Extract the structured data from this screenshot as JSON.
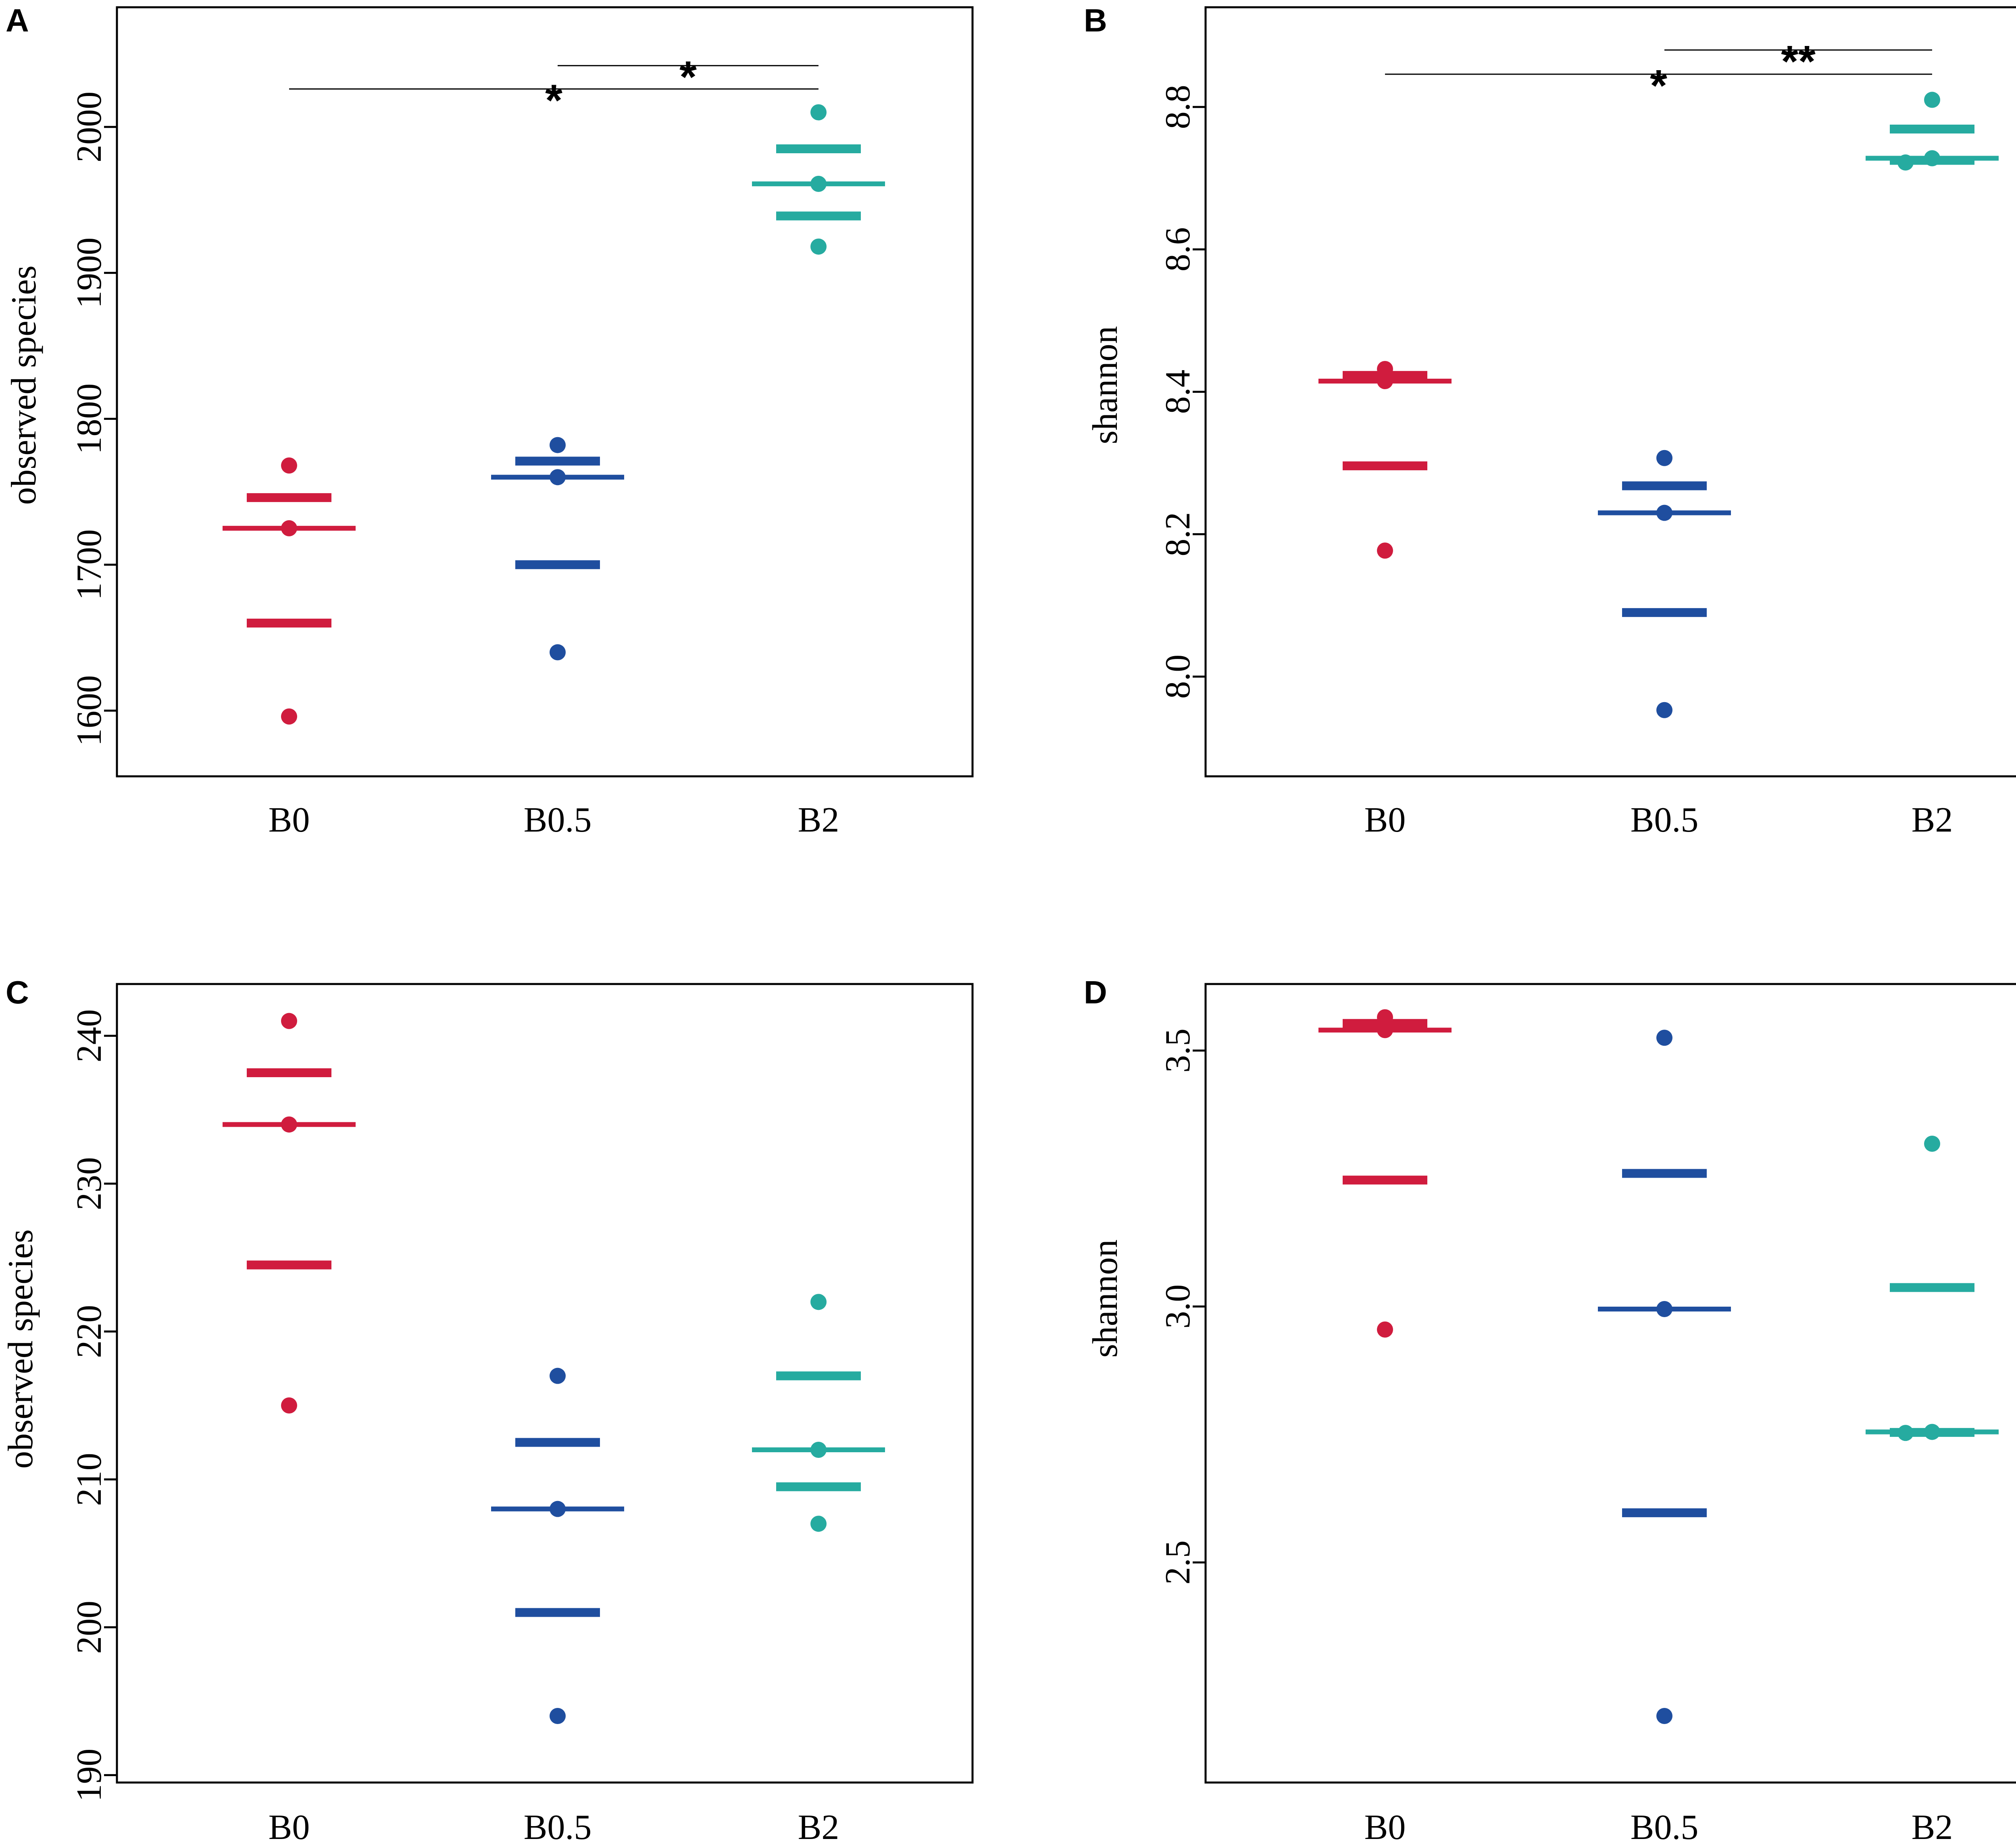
{
  "figure": {
    "colors": {
      "B0": "#D01C3E",
      "B0.5": "#1F4E9F",
      "B2": "#26ABA0"
    }
  },
  "chart_data": [
    {
      "panel": "A",
      "type": "scatter",
      "ylabel": "observed species",
      "xlabel": "",
      "categories": [
        "B0",
        "B0.5",
        "B2"
      ],
      "yticks": [
        1600,
        1700,
        1800,
        1900,
        2000
      ],
      "ylim": [
        1555,
        2082
      ],
      "series": [
        {
          "name": "B0",
          "points": [
            1596,
            1725,
            1768
          ],
          "median": 1725,
          "q1": 1660,
          "q3": 1746
        },
        {
          "name": "B0.5",
          "points": [
            1640,
            1760,
            1782
          ],
          "median": 1760,
          "q1": 1700,
          "q3": 1771
        },
        {
          "name": "B2",
          "points": [
            1918,
            1961,
            2010
          ],
          "median": 1961,
          "q1": 1939,
          "q3": 1985
        }
      ],
      "significance": [
        {
          "from": "B0",
          "to": "B2",
          "y": 2026,
          "label": "*"
        },
        {
          "from": "B0.5",
          "to": "B2",
          "y": 2042,
          "label": "*"
        }
      ]
    },
    {
      "panel": "B",
      "type": "scatter",
      "ylabel": "shannon",
      "xlabel": "",
      "categories": [
        "B0",
        "B0.5",
        "B2"
      ],
      "yticks": [
        "8.0",
        "8.2",
        "8.4",
        "8.6",
        "8.8"
      ],
      "ylim": [
        7.86,
        8.94
      ],
      "series": [
        {
          "name": "B0",
          "points": [
            8.177,
            8.415,
            8.432
          ],
          "median": 8.415,
          "q1": 8.296,
          "q3": 8.423
        },
        {
          "name": "B0.5",
          "points": [
            7.953,
            8.23,
            8.307
          ],
          "median": 8.23,
          "q1": 8.09,
          "q3": 8.268
        },
        {
          "name": "B2",
          "points": [
            8.722,
            8.728,
            8.81
          ],
          "median": 8.728,
          "q1": 8.725,
          "q3": 8.769
        }
      ],
      "significance": [
        {
          "from": "B0",
          "to": "B2",
          "y": 8.846,
          "label": "*"
        },
        {
          "from": "B0.5",
          "to": "B2",
          "y": 8.88,
          "label": "**"
        }
      ]
    },
    {
      "panel": "C",
      "type": "scatter",
      "ylabel": "observed species",
      "xlabel": "",
      "categories": [
        "B0",
        "B0.5",
        "B2"
      ],
      "yticks": [
        190,
        200,
        210,
        220,
        230,
        240
      ],
      "ylim": [
        189.5,
        243.5
      ],
      "series": [
        {
          "name": "B0",
          "points": [
            215,
            234,
            241
          ],
          "median": 234,
          "q1": 224.5,
          "q3": 237.5
        },
        {
          "name": "B0.5",
          "points": [
            194,
            208,
            217
          ],
          "median": 208,
          "q1": 201,
          "q3": 212.5
        },
        {
          "name": "B2",
          "points": [
            207,
            212,
            222
          ],
          "median": 212,
          "q1": 209.5,
          "q3": 217
        }
      ],
      "significance": []
    },
    {
      "panel": "D",
      "type": "scatter",
      "ylabel": "shannon",
      "xlabel": "",
      "categories": [
        "B0",
        "B0.5",
        "B2"
      ],
      "yticks": [
        "2.5",
        "3.0",
        "3.5"
      ],
      "ylim": [
        2.07,
        3.63
      ],
      "series": [
        {
          "name": "B0",
          "points": [
            2.955,
            3.54,
            3.565
          ],
          "median": 3.54,
          "q1": 3.247,
          "q3": 3.553
        },
        {
          "name": "B0.5",
          "points": [
            2.2,
            2.995,
            3.525
          ],
          "median": 2.995,
          "q1": 2.597,
          "q3": 3.26
        },
        {
          "name": "B2",
          "points": [
            2.753,
            2.755,
            3.318
          ],
          "median": 2.755,
          "q1": 2.754,
          "q3": 3.037
        }
      ],
      "significance": []
    }
  ]
}
